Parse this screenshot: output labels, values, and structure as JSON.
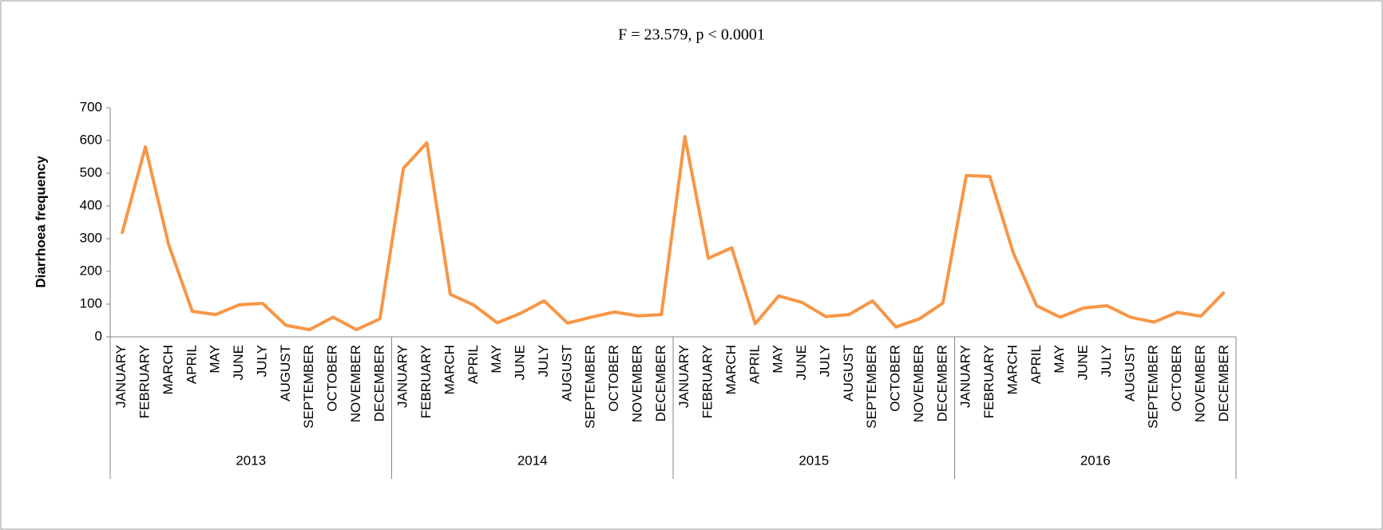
{
  "chart_data": {
    "type": "line",
    "title": "F = 23.579, p < 0.0001",
    "y_label": "Diarrhoea frequency",
    "categories": [
      "JANUARY",
      "FEBRUARY",
      "MARCH",
      "APRIL",
      "MAY",
      "JUNE",
      "JULY",
      "AUGUST",
      "SEPTEMBER",
      "OCTOBER",
      "NOVEMBER",
      "DECEMBER",
      "JANUARY",
      "FEBRUARY",
      "MARCH",
      "APRIL",
      "MAY",
      "JUNE",
      "JULY",
      "AUGUST",
      "SEPTEMBER",
      "OCTOBER",
      "NOVEMBER",
      "DECEMBER",
      "JANUARY",
      "FEBRUARY",
      "MARCH",
      "APRIL",
      "MAY",
      "JUNE",
      "JULY",
      "AUGUST",
      "SEPTEMBER",
      "OCTOBER",
      "NOVEMBER",
      "DECEMBER",
      "JANUARY",
      "FEBRUARY",
      "MARCH",
      "APRIL",
      "MAY",
      "JUNE",
      "JULY",
      "AUGUST",
      "SEPTEMBER",
      "OCTOBER",
      "NOVEMBER",
      "DECEMBER"
    ],
    "groups": [
      "2013",
      "2014",
      "2015",
      "2016"
    ],
    "color": "#f79646",
    "values": [
      315,
      580,
      280,
      78,
      68,
      98,
      102,
      35,
      22,
      60,
      22,
      55,
      515,
      593,
      130,
      97,
      43,
      72,
      110,
      42,
      60,
      76,
      64,
      68,
      612,
      240,
      272,
      40,
      125,
      105,
      62,
      68,
      110,
      30,
      55,
      103,
      493,
      490,
      257,
      95,
      60,
      88,
      95,
      60,
      45,
      75,
      63,
      137
    ],
    "ylim": [
      0,
      700
    ],
    "yticks": [
      0,
      100,
      200,
      300,
      400,
      500,
      600,
      700
    ]
  }
}
